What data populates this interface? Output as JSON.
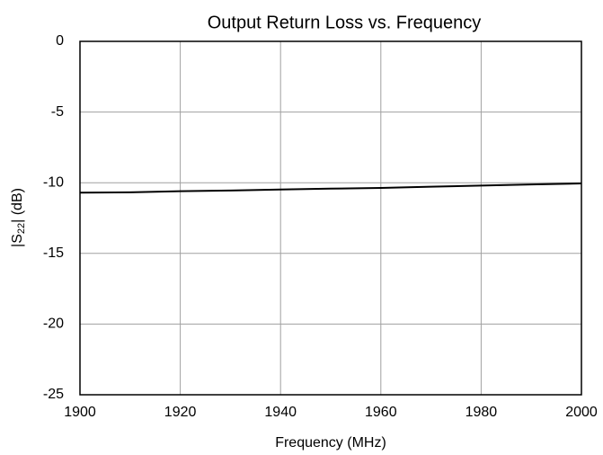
{
  "chart_data": {
    "type": "line",
    "title": "Output Return Loss vs. Frequency",
    "xlabel": "Frequency (MHz)",
    "ylabel_parts": [
      "|S",
      "22",
      "| (dB)"
    ],
    "x": [
      1900,
      1910,
      1920,
      1930,
      1940,
      1950,
      1960,
      1970,
      1980,
      1990,
      2000
    ],
    "series": [
      {
        "name": null,
        "color": "#000000",
        "values": [
          -10.7,
          -10.68,
          -10.6,
          -10.55,
          -10.48,
          -10.42,
          -10.37,
          -10.28,
          -10.2,
          -10.12,
          -10.05
        ]
      }
    ],
    "xlim": [
      1900,
      2000
    ],
    "xticks": [
      1900,
      1920,
      1940,
      1960,
      1980,
      2000
    ],
    "ylim": [
      -25,
      0
    ],
    "yticks": [
      -25,
      -20,
      -15,
      -10,
      -5,
      0
    ],
    "grid": true
  }
}
